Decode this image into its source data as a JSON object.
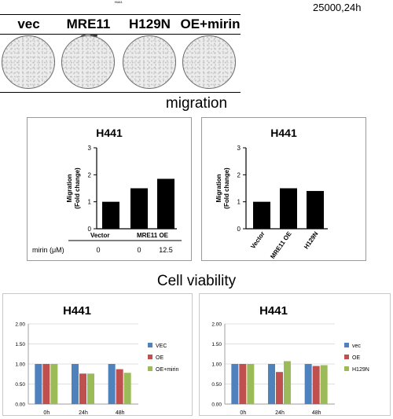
{
  "header": {
    "tiny_label": "H441",
    "note": "25000,24h"
  },
  "wells": [
    "vec",
    "MRE11 OE",
    "H129N",
    "OE+mirin"
  ],
  "sections": {
    "migration": "migration",
    "viability": "Cell viability"
  },
  "chart_data": [
    {
      "type": "bar",
      "title": "H441",
      "ylabel": "Migration\n(Fold change)",
      "categories": [
        "Vector",
        "MRE11 OE",
        "MRE11 OE"
      ],
      "group_labels": [
        "Vector",
        "MRE11 OE"
      ],
      "values": [
        1.0,
        1.5,
        1.85
      ],
      "ylim": [
        0,
        3
      ],
      "yticks": [
        0,
        1,
        2,
        3
      ],
      "table": {
        "row_label": "mirin (μM)",
        "values": [
          "0",
          "0",
          "12.5"
        ]
      },
      "color": "#000000"
    },
    {
      "type": "bar",
      "title": "H441",
      "ylabel": "Migration\n(Fold change)",
      "categories": [
        "Vector",
        "MRE11 OE",
        "H129N"
      ],
      "values": [
        1.0,
        1.5,
        1.4
      ],
      "ylim": [
        0,
        3
      ],
      "yticks": [
        0,
        1,
        2,
        3
      ],
      "color": "#000000"
    },
    {
      "type": "bar",
      "title": "H441",
      "categories": [
        "0h",
        "24h",
        "48h"
      ],
      "series": [
        {
          "name": "VEC",
          "values": [
            1.0,
            1.0,
            1.0
          ],
          "color": "#4F81BD"
        },
        {
          "name": "OE",
          "values": [
            1.0,
            0.76,
            0.87
          ],
          "color": "#C0504D"
        },
        {
          "name": "OE+mirin",
          "values": [
            1.0,
            0.76,
            0.78
          ],
          "color": "#9BBB59"
        }
      ],
      "ylim": [
        0,
        2
      ],
      "yticks": [
        "0.00",
        "0.50",
        "1.00",
        "1.50",
        "2.00"
      ],
      "legend": "right"
    },
    {
      "type": "bar",
      "title": "H441",
      "categories": [
        "0h",
        "24h",
        "48h"
      ],
      "series": [
        {
          "name": "vec",
          "values": [
            1.0,
            1.0,
            1.0
          ],
          "color": "#4F81BD"
        },
        {
          "name": "OE",
          "values": [
            1.0,
            0.8,
            0.95
          ],
          "color": "#C0504D"
        },
        {
          "name": "H129N",
          "values": [
            1.0,
            1.07,
            0.97
          ],
          "color": "#9BBB59"
        }
      ],
      "ylim": [
        0,
        2
      ],
      "yticks": [
        "0.00",
        "0.50",
        "1.00",
        "1.50",
        "2.00"
      ],
      "legend": "right"
    }
  ]
}
